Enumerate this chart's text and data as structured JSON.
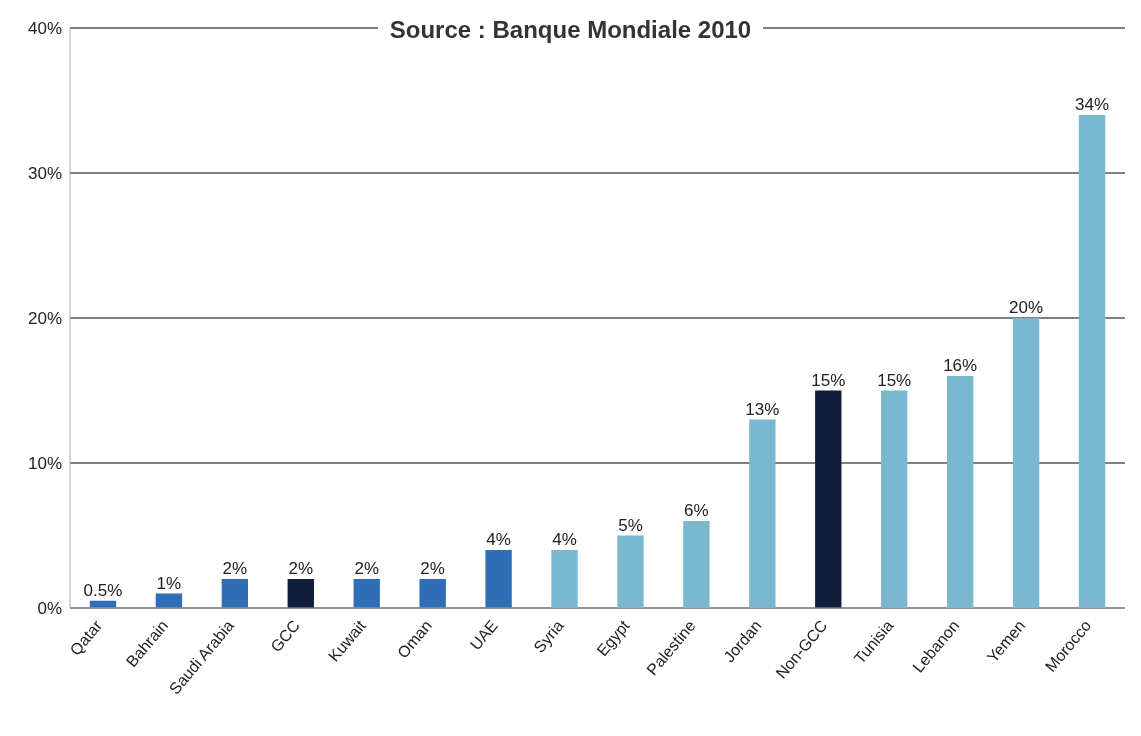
{
  "chart_data": {
    "type": "bar",
    "title": "Source : Banque Mondiale 2010",
    "categories": [
      "Qatar",
      "Bahrain",
      "Saudi Arabia",
      "GCC",
      "Kuwait",
      "Oman",
      "UAE",
      "Syria",
      "Egypt",
      "Palestine",
      "Jordan",
      "Non-GCC",
      "Tunisia",
      "Lebanon",
      "Yemen",
      "Morocco"
    ],
    "values": [
      0.5,
      1,
      2,
      2,
      2,
      2,
      4,
      4,
      5,
      6,
      13,
      15,
      15,
      16,
      20,
      34
    ],
    "colors": [
      "#2f6db5",
      "#2f6db5",
      "#2f6db5",
      "#0f1f3a",
      "#2f6db5",
      "#2f6db5",
      "#2f6db5",
      "#7ab8d0",
      "#7ab8d0",
      "#7ab8d0",
      "#7ab8d0",
      "#0f1f3a",
      "#7ab8d0",
      "#7ab8d0",
      "#7ab8d0",
      "#7ab8d0"
    ],
    "value_labels": [
      "0.5%",
      "1%",
      "2%",
      "2%",
      "2%",
      "2%",
      "4%",
      "4%",
      "5%",
      "6%",
      "13%",
      "15%",
      "15%",
      "16%",
      "20%",
      "34%"
    ],
    "ylim": [
      0,
      40
    ],
    "yticks": [
      {
        "value": 0,
        "label": "0%"
      },
      {
        "value": 10,
        "label": "10%"
      },
      {
        "value": 20,
        "label": "20%"
      },
      {
        "value": 30,
        "label": "30%"
      },
      {
        "value": 40,
        "label": "40%"
      }
    ],
    "grid": "y"
  }
}
